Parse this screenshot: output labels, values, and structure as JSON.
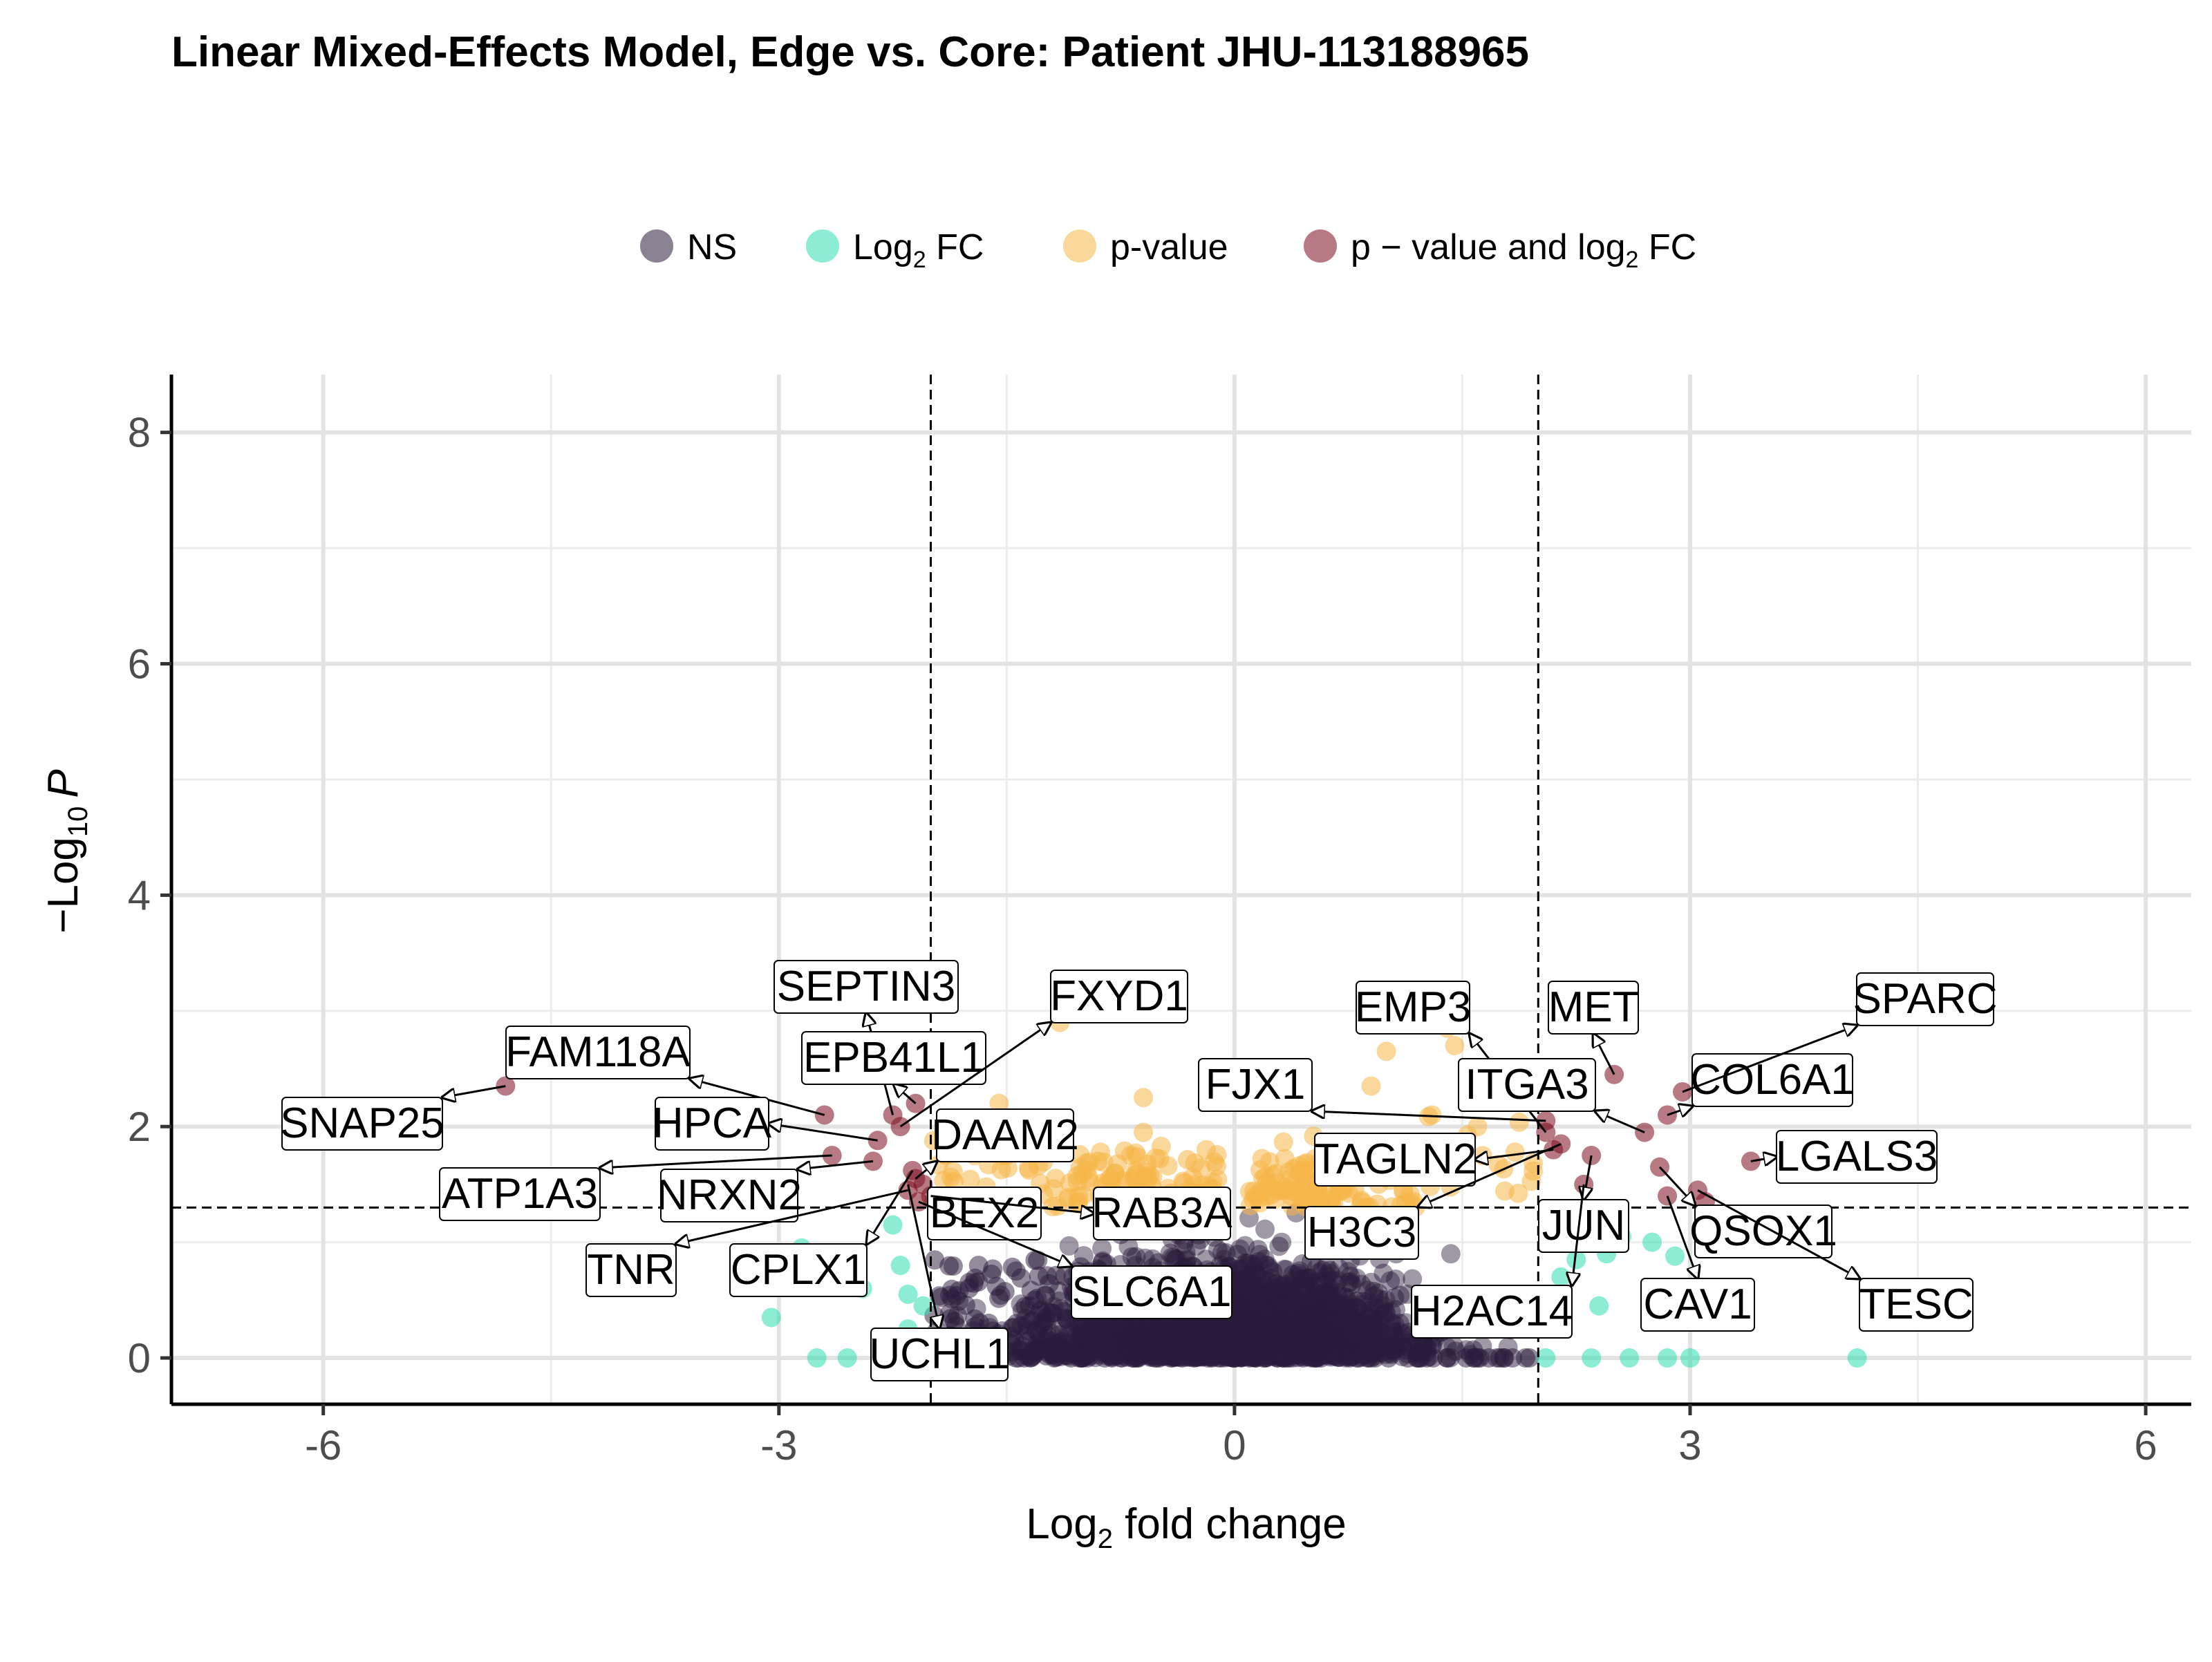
{
  "chart_data": {
    "type": "scatter",
    "title": "Linear Mixed-Effects Model, Edge vs. Core: Patient JHU-113188965",
    "xlabel_main": "Log",
    "xlabel_sub": "2",
    "xlabel_rest": " fold change",
    "ylabel_pre": "−Log",
    "ylabel_sub": "10",
    "ylabel_post": "P",
    "xlim": [
      -7,
      6.3
    ],
    "ylim": [
      -0.4,
      8.5
    ],
    "x_ticks": [
      -6,
      -3,
      0,
      3,
      6
    ],
    "y_ticks": [
      0,
      2,
      4,
      6,
      8
    ],
    "grid": true,
    "fc_cutoff": 2,
    "p_cutoff": 1.3,
    "legend_position": "top",
    "legend": [
      {
        "key": "ns",
        "label": "NS",
        "color": "#2a1a3b"
      },
      {
        "key": "fc",
        "label_main": "Log",
        "label_sub": "2",
        "label_rest": " FC",
        "color": "#2fdfb0"
      },
      {
        "key": "p",
        "label": "p-value",
        "color": "#f5b649"
      },
      {
        "key": "both",
        "label_main": "p − value and log",
        "label_sub": "2",
        "label_rest": " FC",
        "color": "#7b0d1e"
      }
    ],
    "series": [
      {
        "key": "both",
        "points": [
          [
            -4.8,
            2.35
          ],
          [
            -2.7,
            2.1
          ],
          [
            -2.65,
            1.75
          ],
          [
            -2.35,
            1.88
          ],
          [
            -2.38,
            1.7
          ],
          [
            -2.25,
            2.1
          ],
          [
            -2.2,
            2.0
          ],
          [
            -2.1,
            2.2
          ],
          [
            -2.12,
            1.62
          ],
          [
            -2.1,
            1.55
          ],
          [
            -2.05,
            1.5
          ],
          [
            -2.15,
            1.45
          ],
          [
            -2.0,
            1.4
          ],
          [
            -2.08,
            1.35
          ],
          [
            2.05,
            1.95
          ],
          [
            2.05,
            2.05
          ],
          [
            2.1,
            1.8
          ],
          [
            2.15,
            1.85
          ],
          [
            2.35,
            1.75
          ],
          [
            2.3,
            1.5
          ],
          [
            2.5,
            2.45
          ],
          [
            2.7,
            1.95
          ],
          [
            2.85,
            2.1
          ],
          [
            2.8,
            1.65
          ],
          [
            2.85,
            1.4
          ],
          [
            3.05,
            1.45
          ],
          [
            3.1,
            1.35
          ],
          [
            3.4,
            1.7
          ],
          [
            2.95,
            2.3
          ]
        ]
      },
      {
        "key": "fc",
        "points": [
          [
            -3.05,
            0.35
          ],
          [
            -2.85,
            0.95
          ],
          [
            -2.75,
            0.0
          ],
          [
            -2.55,
            0.0
          ],
          [
            -2.45,
            0.6
          ],
          [
            -2.25,
            1.15
          ],
          [
            -2.2,
            0.8
          ],
          [
            -2.15,
            0.55
          ],
          [
            -2.15,
            0.25
          ],
          [
            -2.05,
            0.45
          ],
          [
            2.05,
            0.0
          ],
          [
            2.1,
            0.55
          ],
          [
            2.15,
            0.7
          ],
          [
            2.25,
            0.85
          ],
          [
            2.35,
            0.0
          ],
          [
            2.45,
            0.9
          ],
          [
            2.4,
            0.45
          ],
          [
            2.55,
            1.05
          ],
          [
            2.6,
            0.0
          ],
          [
            2.75,
            1.0
          ],
          [
            2.85,
            0.0
          ],
          [
            2.9,
            0.88
          ],
          [
            3.0,
            0.0
          ],
          [
            4.1,
            0.0
          ]
        ]
      },
      {
        "key": "p",
        "summary": "yellow p-significant points clustered at x between -2 and 2, y between 1.3 and 3",
        "points": [
          [
            -1.15,
            2.9
          ],
          [
            -1.55,
            2.2
          ],
          [
            -0.6,
            2.25
          ],
          [
            -0.6,
            1.95
          ],
          [
            -1.5,
            1.75
          ],
          [
            -1.0,
            1.6
          ],
          [
            1.0,
            2.65
          ],
          [
            1.4,
            2.85
          ],
          [
            1.45,
            2.7
          ],
          [
            0.9,
            2.35
          ],
          [
            0.35,
            1.45
          ],
          [
            1.3,
            2.1
          ],
          [
            1.55,
            2.35
          ],
          [
            1.6,
            2.0
          ]
        ]
      },
      {
        "key": "ns",
        "summary": "dark non-significant points form a dense mass at x between -2 and 2, y between 0 and 1.3"
      }
    ],
    "labels": [
      {
        "text": "SNAP25",
        "point": [
          -4.8,
          2.35
        ]
      },
      {
        "text": "FAM118A",
        "point": [
          -2.7,
          2.1
        ]
      },
      {
        "text": "HPCA",
        "point": [
          -2.35,
          1.88
        ]
      },
      {
        "text": "ATP1A3",
        "point": [
          -2.65,
          1.75
        ]
      },
      {
        "text": "NRXN2",
        "point": [
          -2.38,
          1.7
        ]
      },
      {
        "text": "TNR",
        "point": [
          -2.15,
          1.45
        ]
      },
      {
        "text": "CPLX1",
        "point": [
          -2.12,
          1.62
        ]
      },
      {
        "text": "UCHL1",
        "point": [
          -2.15,
          1.5
        ]
      },
      {
        "text": "SEPTIN3",
        "point": [
          -2.25,
          2.1
        ]
      },
      {
        "text": "EPB41L1",
        "point": [
          -2.1,
          2.2
        ]
      },
      {
        "text": "FXYD1",
        "point": [
          -2.2,
          2.0
        ]
      },
      {
        "text": "DAAM2",
        "point": [
          -2.1,
          1.55
        ]
      },
      {
        "text": "BEX2",
        "point": [
          -2.05,
          1.5
        ]
      },
      {
        "text": "RAB3A",
        "point": [
          -2.0,
          1.4
        ]
      },
      {
        "text": "SLC6A1",
        "point": [
          -2.08,
          1.35
        ]
      },
      {
        "text": "EMP3",
        "point": [
          2.05,
          1.95
        ]
      },
      {
        "text": "FJX1",
        "point": [
          2.05,
          2.05
        ]
      },
      {
        "text": "ITGA3",
        "point": [
          2.7,
          1.95
        ]
      },
      {
        "text": "TAGLN2",
        "point": [
          2.1,
          1.8
        ]
      },
      {
        "text": "H3C3",
        "point": [
          2.15,
          1.85
        ]
      },
      {
        "text": "JUN",
        "point": [
          2.35,
          1.75
        ]
      },
      {
        "text": "H2AC14",
        "point": [
          2.3,
          1.5
        ]
      },
      {
        "text": "MET",
        "point": [
          2.5,
          2.45
        ]
      },
      {
        "text": "COL6A1",
        "point": [
          2.85,
          2.1
        ]
      },
      {
        "text": "SPARC",
        "point": [
          2.95,
          2.3
        ]
      },
      {
        "text": "LGALS3",
        "point": [
          3.4,
          1.7
        ]
      },
      {
        "text": "QSOX1",
        "point": [
          2.8,
          1.65
        ]
      },
      {
        "text": "CAV1",
        "point": [
          2.85,
          1.4
        ]
      },
      {
        "text": "TESC",
        "point": [
          3.05,
          1.45
        ]
      }
    ]
  }
}
